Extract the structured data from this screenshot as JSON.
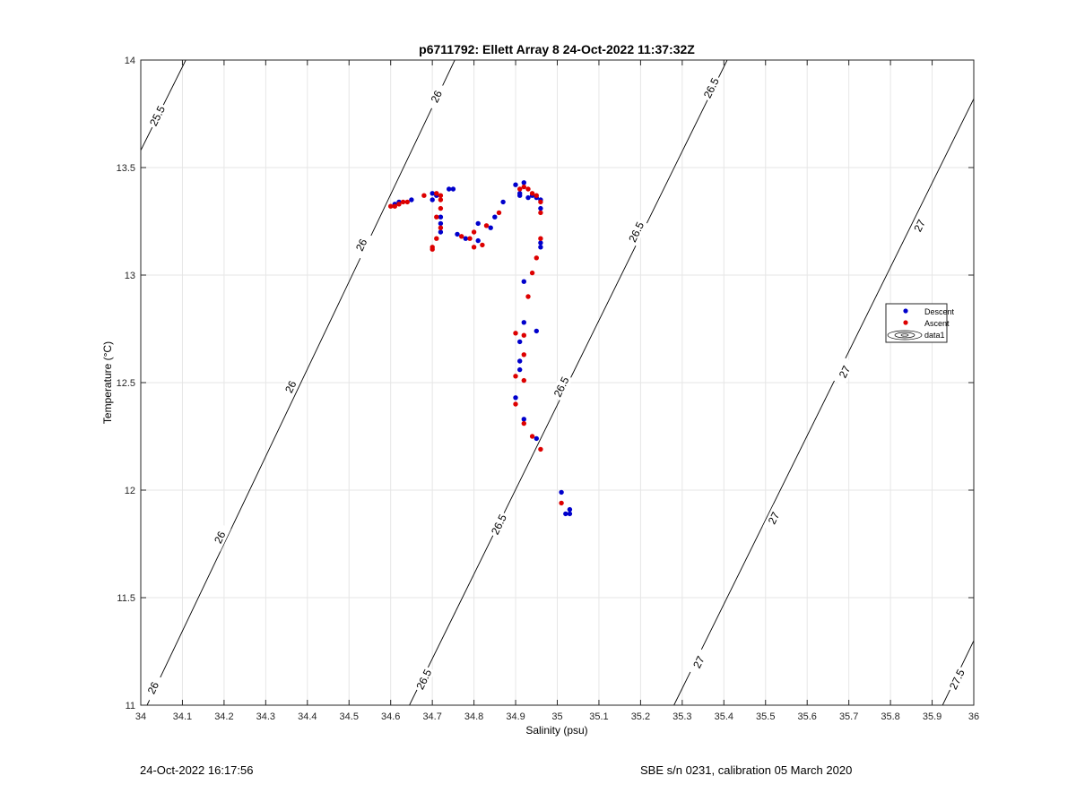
{
  "chart_data": {
    "type": "scatter",
    "title": "p6711792: Ellett Array 8 24-Oct-2022 11:37:32Z",
    "xlabel": "Salinity (psu)",
    "ylabel": "Temperature (°C)",
    "xlim": [
      34,
      36
    ],
    "ylim": [
      11,
      14
    ],
    "xticks": [
      34,
      34.1,
      34.2,
      34.3,
      34.4,
      34.5,
      34.6,
      34.7,
      34.8,
      34.9,
      35,
      35.1,
      35.2,
      35.3,
      35.4,
      35.5,
      35.6,
      35.7,
      35.8,
      35.9,
      36
    ],
    "yticks": [
      11,
      11.5,
      12,
      12.5,
      13,
      13.5,
      14
    ],
    "grid": true,
    "legend": {
      "position": "right",
      "entries": [
        {
          "label": "Descent",
          "color": "#0000cc",
          "marker": "dot"
        },
        {
          "label": "Ascent",
          "color": "#dd0000",
          "marker": "dot"
        },
        {
          "label": "data1",
          "color": "#000000",
          "marker": "contour"
        }
      ]
    },
    "contours": [
      {
        "label": "25.5",
        "points": [
          [
            34,
            13.58
          ],
          [
            34.108,
            14
          ]
        ],
        "label_at": [
          [
            34.04,
            13.74
          ]
        ]
      },
      {
        "label": "26",
        "points": [
          [
            34.015,
            11
          ],
          [
            34.754,
            14
          ]
        ],
        "label_at": [
          [
            34.03,
            11.08
          ],
          [
            34.19,
            11.78
          ],
          [
            34.36,
            12.48
          ],
          [
            34.53,
            13.14
          ],
          [
            34.71,
            13.83
          ]
        ]
      },
      {
        "label": "26.5",
        "points": [
          [
            34.645,
            11
          ],
          [
            35.408,
            14
          ]
        ],
        "label_at": [
          [
            34.68,
            11.12
          ],
          [
            34.86,
            11.84
          ],
          [
            35.01,
            12.48
          ],
          [
            35.19,
            13.2
          ],
          [
            35.37,
            13.87
          ]
        ]
      },
      {
        "label": "27",
        "points": [
          [
            35.28,
            11
          ],
          [
            36,
            13.82
          ]
        ],
        "label_at": [
          [
            35.34,
            11.2
          ],
          [
            35.52,
            11.87
          ],
          [
            35.69,
            12.55
          ],
          [
            35.87,
            13.23
          ]
        ]
      },
      {
        "label": "27.5",
        "points": [
          [
            35.925,
            11
          ],
          [
            36,
            11.3
          ]
        ],
        "label_at": [
          [
            35.96,
            11.12
          ]
        ]
      }
    ],
    "series": [
      {
        "name": "Descent",
        "color": "#0000cc",
        "points": [
          [
            34.61,
            13.33
          ],
          [
            34.62,
            13.34
          ],
          [
            34.65,
            13.35
          ],
          [
            34.7,
            13.38
          ],
          [
            34.71,
            13.37
          ],
          [
            34.7,
            13.35
          ],
          [
            34.72,
            13.27
          ],
          [
            34.72,
            13.24
          ],
          [
            34.72,
            13.2
          ],
          [
            34.74,
            13.4
          ],
          [
            34.75,
            13.4
          ],
          [
            34.76,
            13.19
          ],
          [
            34.78,
            13.17
          ],
          [
            34.81,
            13.24
          ],
          [
            34.81,
            13.16
          ],
          [
            34.84,
            13.22
          ],
          [
            34.85,
            13.27
          ],
          [
            34.87,
            13.34
          ],
          [
            34.9,
            13.42
          ],
          [
            34.91,
            13.38
          ],
          [
            34.91,
            13.37
          ],
          [
            34.92,
            13.43
          ],
          [
            34.93,
            13.36
          ],
          [
            34.94,
            13.37
          ],
          [
            34.95,
            13.36
          ],
          [
            34.96,
            13.35
          ],
          [
            34.96,
            13.31
          ],
          [
            34.96,
            13.15
          ],
          [
            34.96,
            13.13
          ],
          [
            34.92,
            12.97
          ],
          [
            34.92,
            12.78
          ],
          [
            34.95,
            12.74
          ],
          [
            34.91,
            12.69
          ],
          [
            34.91,
            12.6
          ],
          [
            34.91,
            12.56
          ],
          [
            34.9,
            12.43
          ],
          [
            34.92,
            12.33
          ],
          [
            34.95,
            12.24
          ],
          [
            35.01,
            11.99
          ],
          [
            35.02,
            11.89
          ],
          [
            35.03,
            11.91
          ],
          [
            35.03,
            11.89
          ]
        ]
      },
      {
        "name": "Ascent",
        "color": "#dd0000",
        "points": [
          [
            34.6,
            13.32
          ],
          [
            34.61,
            13.32
          ],
          [
            34.62,
            13.33
          ],
          [
            34.63,
            13.34
          ],
          [
            34.64,
            13.34
          ],
          [
            34.68,
            13.37
          ],
          [
            34.71,
            13.38
          ],
          [
            34.72,
            13.37
          ],
          [
            34.72,
            13.35
          ],
          [
            34.72,
            13.31
          ],
          [
            34.71,
            13.27
          ],
          [
            34.72,
            13.22
          ],
          [
            34.71,
            13.17
          ],
          [
            34.7,
            13.13
          ],
          [
            34.7,
            13.12
          ],
          [
            34.77,
            13.18
          ],
          [
            34.79,
            13.17
          ],
          [
            34.8,
            13.2
          ],
          [
            34.8,
            13.13
          ],
          [
            34.82,
            13.14
          ],
          [
            34.83,
            13.23
          ],
          [
            34.86,
            13.29
          ],
          [
            34.91,
            13.4
          ],
          [
            34.92,
            13.41
          ],
          [
            34.93,
            13.4
          ],
          [
            34.94,
            13.38
          ],
          [
            34.95,
            13.37
          ],
          [
            34.96,
            13.34
          ],
          [
            34.96,
            13.29
          ],
          [
            34.96,
            13.17
          ],
          [
            34.95,
            13.08
          ],
          [
            34.94,
            13.01
          ],
          [
            34.93,
            12.9
          ],
          [
            34.92,
            12.72
          ],
          [
            34.9,
            12.73
          ],
          [
            34.92,
            12.63
          ],
          [
            34.92,
            12.51
          ],
          [
            34.9,
            12.53
          ],
          [
            34.9,
            12.4
          ],
          [
            34.92,
            12.31
          ],
          [
            34.94,
            12.25
          ],
          [
            34.96,
            12.19
          ],
          [
            35.01,
            11.94
          ]
        ]
      }
    ]
  },
  "footer": {
    "timestamp": "24-Oct-2022 16:17:56",
    "calibration": "SBE s/n 0231, calibration 05 March 2020"
  }
}
